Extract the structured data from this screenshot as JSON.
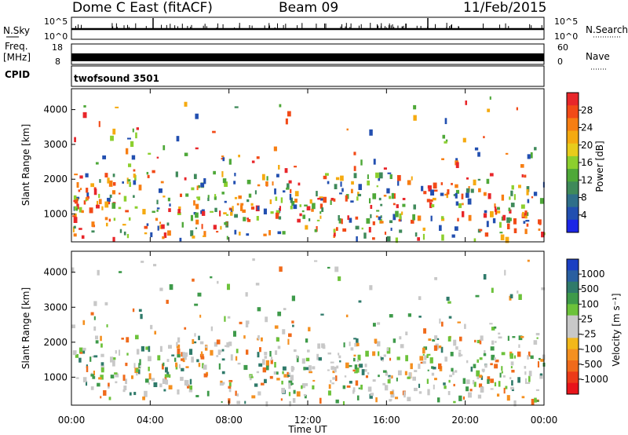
{
  "header": {
    "title": "Dome C East (fitACF)",
    "beam": "Beam 09",
    "date": "11/Feb/2015"
  },
  "nsky_panel": {
    "left_label": "N.Sky",
    "right_label": "N.Search",
    "left_ticks": [
      "10^5",
      "10^0"
    ],
    "right_ticks": [
      "10^5",
      "10^0"
    ]
  },
  "freq_panel": {
    "left_label_1": "Freq.",
    "left_label_2": "[MHz]",
    "left_ticks": [
      "18",
      "8"
    ],
    "right_label": "Nave",
    "right_ticks": [
      "60",
      "0"
    ]
  },
  "cpid": {
    "label": "CPID",
    "value": "twofsound 3501"
  },
  "chart_data": [
    {
      "type": "heatmap",
      "name": "power",
      "ylabel": "Slant Range [km]",
      "yticks": [
        1000,
        2000,
        3000,
        4000
      ],
      "ylim": [
        200,
        4600
      ],
      "xlabel": "Time UT",
      "xticks": [
        "00:00",
        "04:00",
        "08:00",
        "12:00",
        "16:00",
        "20:00",
        "00:00"
      ],
      "xlim": [
        0,
        24
      ],
      "colorbar": {
        "label": "Power [dB]",
        "ticks": [
          "28",
          "24",
          "20",
          "16",
          "12",
          "8",
          "4"
        ],
        "colors": [
          "#e8262a",
          "#f24a17",
          "#f77e12",
          "#f5aa10",
          "#e8cc1c",
          "#8ccf2e",
          "#4ea838",
          "#3f8a5a",
          "#2f6f8a",
          "#224fb0",
          "#1b25e6"
        ]
      }
    },
    {
      "type": "heatmap",
      "name": "velocity",
      "ylabel": "Slant Range [km]",
      "yticks": [
        1000,
        2000,
        3000,
        4000
      ],
      "ylim": [
        200,
        4600
      ],
      "xlabel": "Time UT",
      "xticks": [
        "00:00",
        "04:00",
        "08:00",
        "12:00",
        "16:00",
        "20:00",
        "00:00"
      ],
      "xlim": [
        0,
        24
      ],
      "colorbar": {
        "label": "Velocity [m s⁻¹]",
        "ticks": [
          "1000",
          "500",
          "100",
          "25",
          "-25",
          "-100",
          "-500",
          "-1000"
        ],
        "colors": [
          "#1b3fc2",
          "#2a5fa0",
          "#2f7a6a",
          "#3e9a4a",
          "#6cc23a",
          "#c8c8c8",
          "#c8c8c8",
          "#f2b81a",
          "#f49020",
          "#f06a1a",
          "#ec3a18",
          "#e8141a"
        ]
      }
    }
  ]
}
